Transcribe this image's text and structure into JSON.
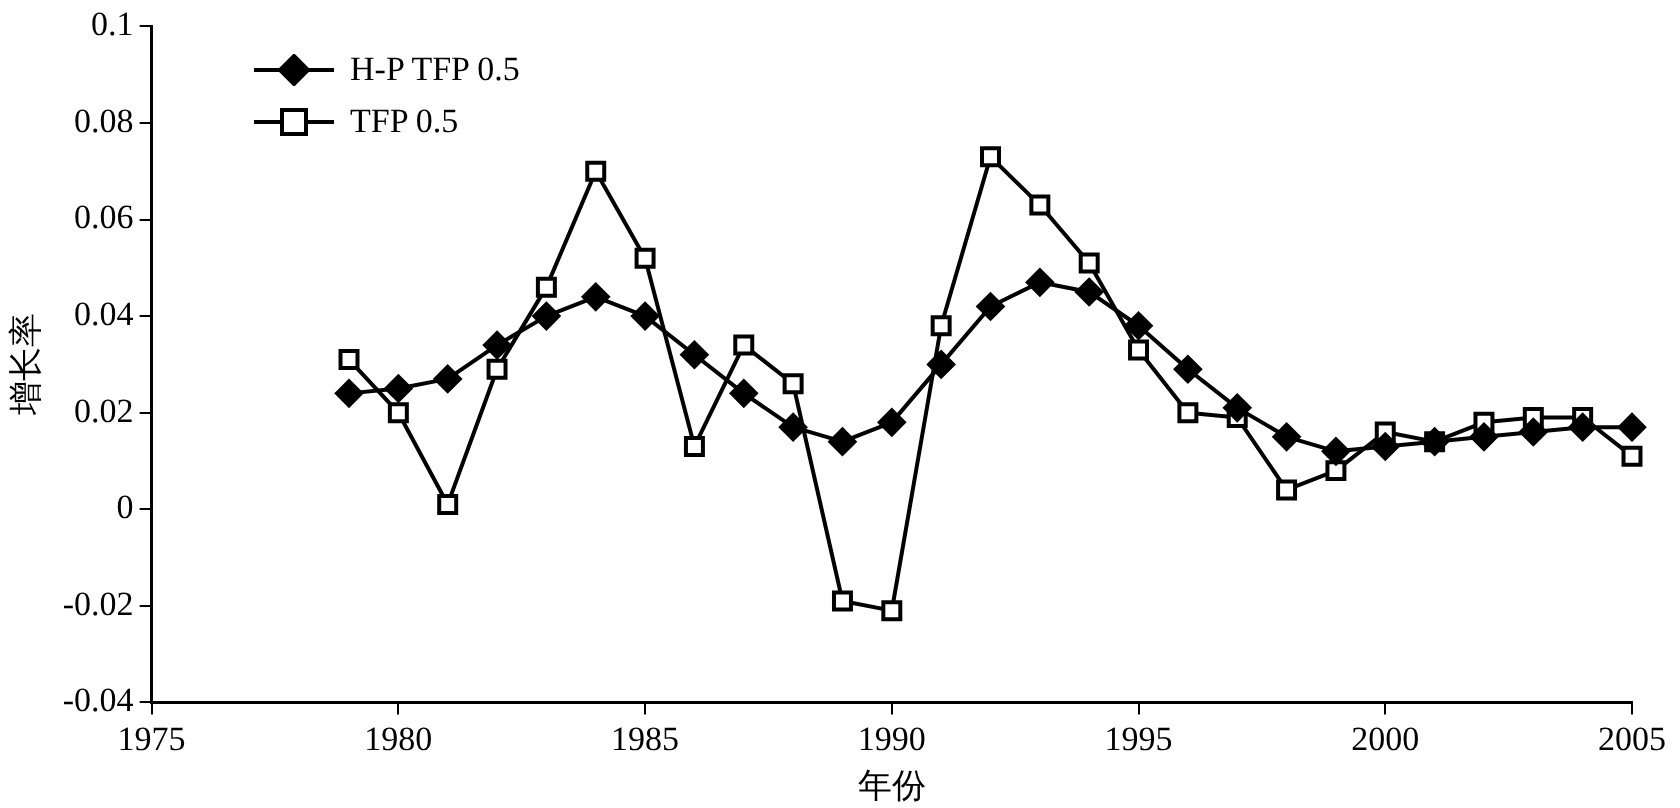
{
  "chart_data": {
    "type": "line",
    "xlabel": "年份",
    "ylabel": "增长率",
    "x": [
      1979,
      1980,
      1981,
      1982,
      1983,
      1984,
      1985,
      1986,
      1987,
      1988,
      1989,
      1990,
      1991,
      1992,
      1993,
      1994,
      1995,
      1996,
      1997,
      1998,
      1999,
      2000,
      2001,
      2002,
      2003,
      2004,
      2005
    ],
    "series": [
      {
        "name": "H-P TFP 0.5",
        "color": "#000000",
        "marker": "diamond",
        "values": [
          0.024,
          0.025,
          0.027,
          0.034,
          0.04,
          0.044,
          0.04,
          0.032,
          0.024,
          0.017,
          0.014,
          0.018,
          0.03,
          0.042,
          0.047,
          0.045,
          0.038,
          0.029,
          0.021,
          0.015,
          0.012,
          0.013,
          0.014,
          0.015,
          0.016,
          0.017,
          0.017
        ]
      },
      {
        "name": "TFP 0.5",
        "color": "#000000",
        "marker": "square",
        "values": [
          0.031,
          0.02,
          0.001,
          0.029,
          0.046,
          0.07,
          0.052,
          0.013,
          0.034,
          0.026,
          -0.019,
          -0.021,
          0.038,
          0.073,
          0.063,
          0.051,
          0.033,
          0.02,
          0.019,
          0.004,
          0.008,
          0.016,
          0.014,
          0.018,
          0.019,
          0.019,
          0.011
        ]
      }
    ],
    "xlim": [
      1975,
      2005
    ],
    "xticks": [
      1975,
      1980,
      1985,
      1990,
      1995,
      2000,
      2005
    ],
    "ylim": [
      -0.04,
      0.1
    ],
    "yticks": [
      -0.04,
      -0.02,
      0,
      0.02,
      0.04,
      0.06,
      0.08,
      0.1
    ],
    "grid": false,
    "legend": "top left",
    "line_style": "solid"
  }
}
